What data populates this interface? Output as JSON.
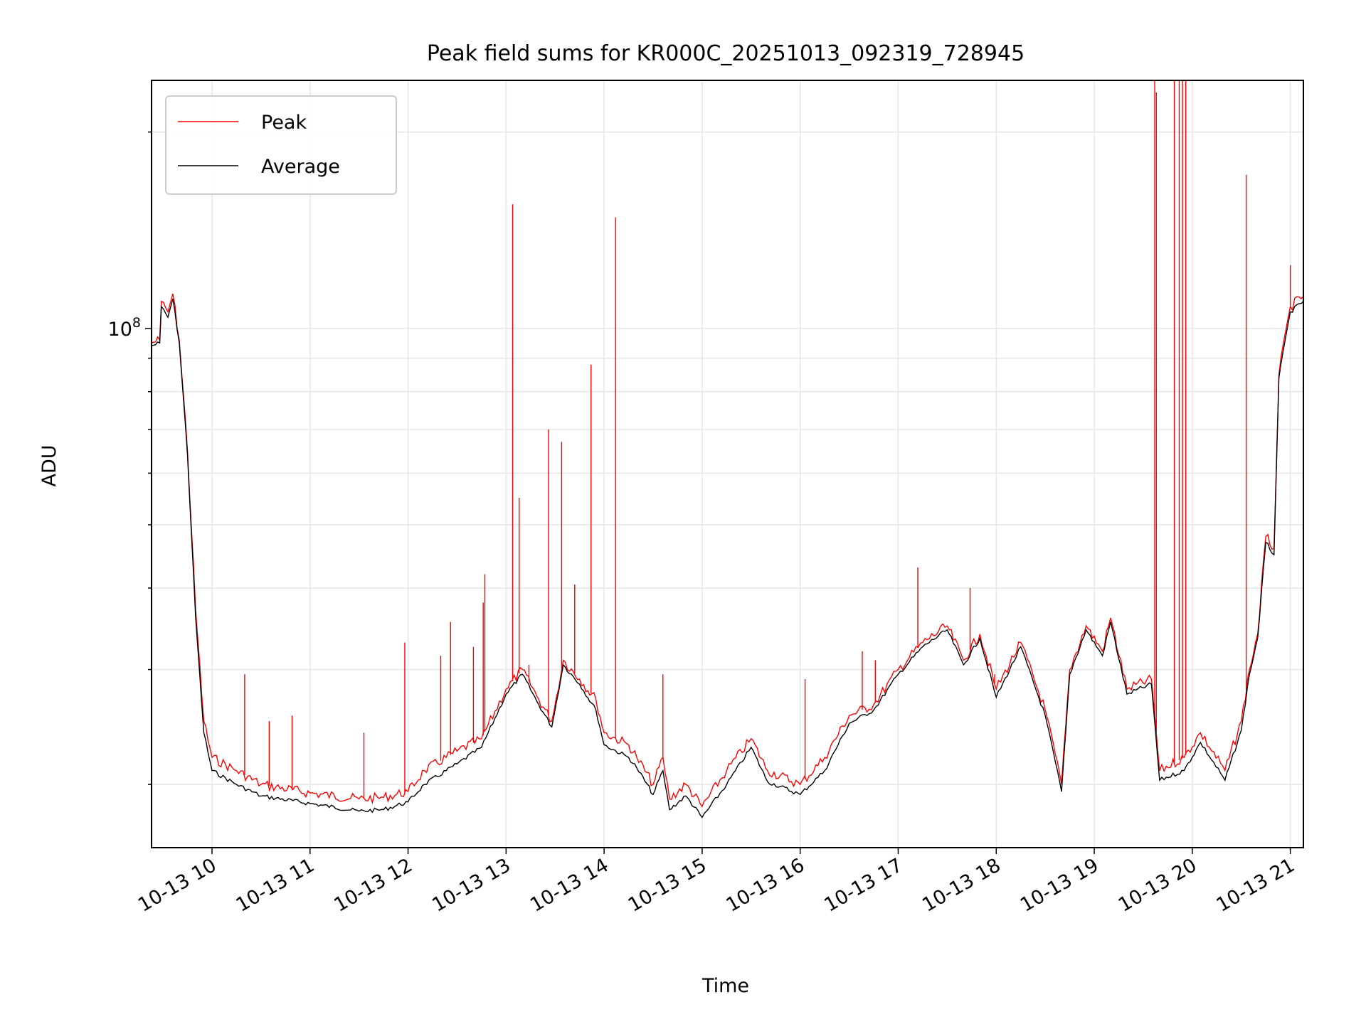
{
  "chart_data": {
    "type": "line",
    "title": "Peak field sums for KR000C_20251013_092319_728945",
    "xlabel": "Time",
    "ylabel": "ADU",
    "y_scale": "log",
    "ylim": [
      16000000,
      240000000
    ],
    "xlim": [
      "2025-10-13T09:23",
      "2025-10-13T21:08"
    ],
    "x_ticks": [
      {
        "t": "2025-10-13T10:00",
        "label": "10-13 10"
      },
      {
        "t": "2025-10-13T11:00",
        "label": "10-13 11"
      },
      {
        "t": "2025-10-13T12:00",
        "label": "10-13 12"
      },
      {
        "t": "2025-10-13T13:00",
        "label": "10-13 13"
      },
      {
        "t": "2025-10-13T14:00",
        "label": "10-13 14"
      },
      {
        "t": "2025-10-13T15:00",
        "label": "10-13 15"
      },
      {
        "t": "2025-10-13T16:00",
        "label": "10-13 16"
      },
      {
        "t": "2025-10-13T17:00",
        "label": "10-13 17"
      },
      {
        "t": "2025-10-13T18:00",
        "label": "10-13 18"
      },
      {
        "t": "2025-10-13T19:00",
        "label": "10-13 19"
      },
      {
        "t": "2025-10-13T20:00",
        "label": "10-13 20"
      },
      {
        "t": "2025-10-13T21:00",
        "label": "10-13 21"
      }
    ],
    "y_major_ticks": [
      {
        "value": 100000000,
        "label_base": "10",
        "label_exp": "8"
      }
    ],
    "grid": true,
    "legend_position": "upper-left",
    "series": [
      {
        "name": "Peak",
        "color": "#ff0000",
        "x": [
          "2025-10-13T09:23",
          "2025-10-13T09:28",
          "2025-10-13T09:29",
          "2025-10-13T09:33",
          "2025-10-13T09:36",
          "2025-10-13T09:40",
          "2025-10-13T09:45",
          "2025-10-13T09:50",
          "2025-10-13T09:55",
          "2025-10-13T10:00",
          "2025-10-13T10:15",
          "2025-10-13T10:30",
          "2025-10-13T11:00",
          "2025-10-13T11:30",
          "2025-10-13T11:45",
          "2025-10-13T12:00",
          "2025-10-13T12:10",
          "2025-10-13T12:30",
          "2025-10-13T12:45",
          "2025-10-13T13:00",
          "2025-10-13T13:10",
          "2025-10-13T13:20",
          "2025-10-13T13:28",
          "2025-10-13T13:35",
          "2025-10-13T13:45",
          "2025-10-13T13:55",
          "2025-10-13T14:00",
          "2025-10-13T14:15",
          "2025-10-13T14:20",
          "2025-10-13T14:30",
          "2025-10-13T14:36",
          "2025-10-13T14:40",
          "2025-10-13T14:50",
          "2025-10-13T15:00",
          "2025-10-13T15:15",
          "2025-10-13T15:30",
          "2025-10-13T15:40",
          "2025-10-13T16:00",
          "2025-10-13T16:15",
          "2025-10-13T16:30",
          "2025-10-13T16:45",
          "2025-10-13T17:00",
          "2025-10-13T17:15",
          "2025-10-13T17:30",
          "2025-10-13T17:40",
          "2025-10-13T17:50",
          "2025-10-13T18:00",
          "2025-10-13T18:15",
          "2025-10-13T18:30",
          "2025-10-13T18:40",
          "2025-10-13T18:45",
          "2025-10-13T18:55",
          "2025-10-13T19:05",
          "2025-10-13T19:10",
          "2025-10-13T19:20",
          "2025-10-13T19:35",
          "2025-10-13T19:40",
          "2025-10-13T19:55",
          "2025-10-13T20:05",
          "2025-10-13T20:20",
          "2025-10-13T20:30",
          "2025-10-13T20:35",
          "2025-10-13T20:40",
          "2025-10-13T20:45",
          "2025-10-13T20:50",
          "2025-10-13T20:53",
          "2025-10-13T21:00",
          "2025-10-13T21:08"
        ],
        "values": [
          95000000,
          96000000,
          110000000,
          106000000,
          113000000,
          96000000,
          65000000,
          37000000,
          25000000,
          22000000,
          21000000,
          20000000,
          19400000,
          19000000,
          19100000,
          19500000,
          21000000,
          22500000,
          23500000,
          28000000,
          30000000,
          27000000,
          25000000,
          31000000,
          29000000,
          27000000,
          24000000,
          23000000,
          22000000,
          20000000,
          22000000,
          19000000,
          20000000,
          18500000,
          21000000,
          23500000,
          21000000,
          20000000,
          22000000,
          25500000,
          26500000,
          30000000,
          33000000,
          35000000,
          31000000,
          34000000,
          28000000,
          33000000,
          26000000,
          20000000,
          30000000,
          35000000,
          32000000,
          36000000,
          28000000,
          29000000,
          21000000,
          22000000,
          24000000,
          21000000,
          25000000,
          30000000,
          34000000,
          48000000,
          46000000,
          85000000,
          108000000,
          112000000
        ]
      },
      {
        "name": "Average",
        "color": "#000000",
        "x": [
          "2025-10-13T09:23",
          "2025-10-13T09:28",
          "2025-10-13T09:29",
          "2025-10-13T09:33",
          "2025-10-13T09:36",
          "2025-10-13T09:40",
          "2025-10-13T09:45",
          "2025-10-13T09:50",
          "2025-10-13T09:55",
          "2025-10-13T10:00",
          "2025-10-13T10:15",
          "2025-10-13T10:30",
          "2025-10-13T11:00",
          "2025-10-13T11:30",
          "2025-10-13T11:45",
          "2025-10-13T12:00",
          "2025-10-13T12:10",
          "2025-10-13T12:30",
          "2025-10-13T12:45",
          "2025-10-13T13:00",
          "2025-10-13T13:10",
          "2025-10-13T13:20",
          "2025-10-13T13:28",
          "2025-10-13T13:35",
          "2025-10-13T13:45",
          "2025-10-13T13:55",
          "2025-10-13T14:00",
          "2025-10-13T14:15",
          "2025-10-13T14:20",
          "2025-10-13T14:30",
          "2025-10-13T14:36",
          "2025-10-13T14:40",
          "2025-10-13T14:50",
          "2025-10-13T15:00",
          "2025-10-13T15:15",
          "2025-10-13T15:30",
          "2025-10-13T15:40",
          "2025-10-13T16:00",
          "2025-10-13T16:15",
          "2025-10-13T16:30",
          "2025-10-13T16:45",
          "2025-10-13T17:00",
          "2025-10-13T17:15",
          "2025-10-13T17:30",
          "2025-10-13T17:40",
          "2025-10-13T17:50",
          "2025-10-13T18:00",
          "2025-10-13T18:15",
          "2025-10-13T18:30",
          "2025-10-13T18:40",
          "2025-10-13T18:45",
          "2025-10-13T18:55",
          "2025-10-13T19:05",
          "2025-10-13T19:10",
          "2025-10-13T19:20",
          "2025-10-13T19:35",
          "2025-10-13T19:40",
          "2025-10-13T19:55",
          "2025-10-13T20:05",
          "2025-10-13T20:20",
          "2025-10-13T20:30",
          "2025-10-13T20:35",
          "2025-10-13T20:40",
          "2025-10-13T20:45",
          "2025-10-13T20:50",
          "2025-10-13T20:53",
          "2025-10-13T21:00",
          "2025-10-13T21:08"
        ],
        "values": [
          94000000,
          95000000,
          108000000,
          104000000,
          111000000,
          95000000,
          64000000,
          36000000,
          24000000,
          21000000,
          20000000,
          19200000,
          18700000,
          18200000,
          18300000,
          18800000,
          20000000,
          21500000,
          22800000,
          27500000,
          29500000,
          26500000,
          24500000,
          30500000,
          28500000,
          26000000,
          23000000,
          22000000,
          21200000,
          19300000,
          21000000,
          18300000,
          19200000,
          17800000,
          20000000,
          22800000,
          20200000,
          19300000,
          21000000,
          24800000,
          26000000,
          29500000,
          32500000,
          34500000,
          30500000,
          33500000,
          27200000,
          32500000,
          25500000,
          19500000,
          29500000,
          34500000,
          31500000,
          35500000,
          27500000,
          28500000,
          20300000,
          21000000,
          23200000,
          20300000,
          24200000,
          29500000,
          33500000,
          47000000,
          45000000,
          84000000,
          106000000,
          110000000
        ]
      }
    ],
    "spikes": {
      "series": "Peak",
      "t": [
        "2025-10-13T10:20",
        "2025-10-13T10:35",
        "2025-10-13T10:49",
        "2025-10-13T11:33",
        "2025-10-13T11:58",
        "2025-10-13T12:20",
        "2025-10-13T12:26",
        "2025-10-13T12:40",
        "2025-10-13T12:46",
        "2025-10-13T12:47",
        "2025-10-13T13:04",
        "2025-10-13T13:08",
        "2025-10-13T13:14",
        "2025-10-13T13:26",
        "2025-10-13T13:34",
        "2025-10-13T13:42",
        "2025-10-13T13:52",
        "2025-10-13T14:07",
        "2025-10-13T14:36",
        "2025-10-13T16:03",
        "2025-10-13T16:38",
        "2025-10-13T16:46",
        "2025-10-13T17:12",
        "2025-10-13T17:44",
        "2025-10-13T17:59",
        "2025-10-13T19:37",
        "2025-10-13T19:38",
        "2025-10-13T19:49",
        "2025-10-13T19:52",
        "2025-10-13T19:54",
        "2025-10-13T19:56",
        "2025-10-13T20:33",
        "2025-10-13T21:00"
      ],
      "values": [
        29500000,
        25000000,
        25500000,
        24000000,
        33000000,
        31500000,
        35500000,
        32500000,
        38000000,
        42000000,
        155000000,
        55000000,
        30500000,
        70000000,
        67000000,
        40500000,
        88000000,
        148000000,
        29500000,
        29000000,
        32000000,
        31000000,
        43000000,
        40000000,
        29500000,
        240000000,
        230000000,
        240000000,
        240000000,
        240000000,
        240000000,
        172000000,
        125000000
      ]
    }
  }
}
